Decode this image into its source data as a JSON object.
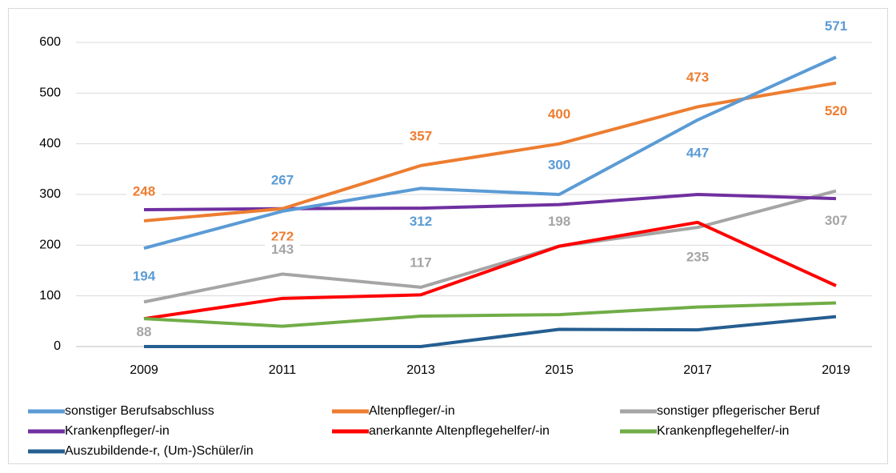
{
  "chart_data": {
    "type": "line",
    "categories": [
      "2009",
      "2011",
      "2013",
      "2015",
      "2017",
      "2019"
    ],
    "ylim": [
      0,
      600
    ],
    "yticks": [
      0,
      100,
      200,
      300,
      400,
      500,
      600
    ],
    "grid": true,
    "series": [
      {
        "name": "sonstiger Berufsabschluss",
        "color": "#5b9bd5",
        "data_labels": true,
        "values": [
          194,
          267,
          312,
          300,
          447,
          571
        ]
      },
      {
        "name": "Altenpfleger/-in",
        "color": "#ed7d31",
        "data_labels": true,
        "values": [
          248,
          272,
          357,
          400,
          473,
          520
        ]
      },
      {
        "name": "sonstiger pflegerischer Beruf",
        "color": "#a5a5a5",
        "data_labels": true,
        "values": [
          88,
          143,
          117,
          198,
          235,
          307
        ]
      },
      {
        "name": "Krankenpfleger/-in",
        "color": "#7030a0",
        "data_labels": false,
        "values": [
          270,
          272,
          273,
          280,
          300,
          292
        ]
      },
      {
        "name": "anerkannte Altenpflegehelfer/-in",
        "color": "#ff0000",
        "data_labels": false,
        "values": [
          55,
          95,
          102,
          198,
          245,
          120
        ]
      },
      {
        "name": "Krankenpflegehelfer/-in",
        "color": "#70ad47",
        "data_labels": false,
        "values": [
          55,
          40,
          60,
          63,
          78,
          86
        ]
      },
      {
        "name": "Auszubildende-r, (Um-)Schüler/in",
        "color": "#255e91",
        "data_labels": false,
        "values": [
          0,
          0,
          0,
          34,
          33,
          59
        ]
      }
    ]
  }
}
